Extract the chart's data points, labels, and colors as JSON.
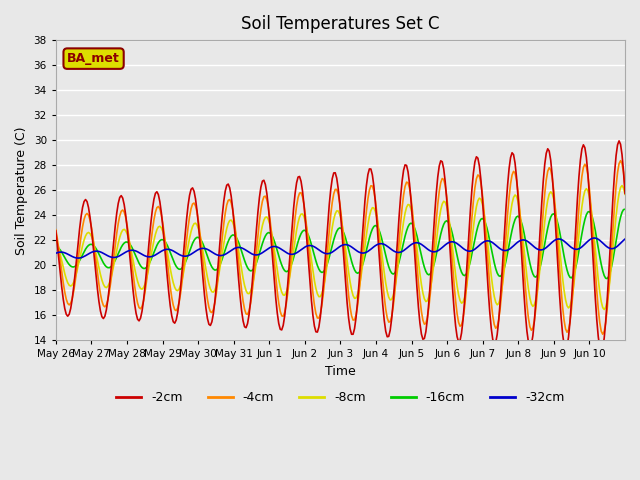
{
  "title": "Soil Temperatures Set C",
  "xlabel": "Time",
  "ylabel": "Soil Temperature (C)",
  "ylim": [
    14,
    38
  ],
  "yticks": [
    14,
    16,
    18,
    20,
    22,
    24,
    26,
    28,
    30,
    32,
    34,
    36,
    38
  ],
  "background_color": "#e8e8e8",
  "plot_bg_color": "#e8e8e8",
  "grid_color": "#ffffff",
  "series_colors": {
    "-2cm": "#cc0000",
    "-4cm": "#ff8800",
    "-8cm": "#dddd00",
    "-16cm": "#00cc00",
    "-32cm": "#0000cc"
  },
  "label_box_color": "#dddd00",
  "label_box_edge": "#8b0000",
  "label_text": "BA_met",
  "days": [
    "May 26",
    "May 27",
    "May 28",
    "May 29",
    "May 30",
    "May 31",
    "Jun 1",
    "Jun 2",
    "Jun 3",
    "Jun 4",
    "Jun 5",
    "Jun 6",
    "Jun 7",
    "Jun 8",
    "Jun 9",
    "Jun 10"
  ],
  "num_days": 16
}
